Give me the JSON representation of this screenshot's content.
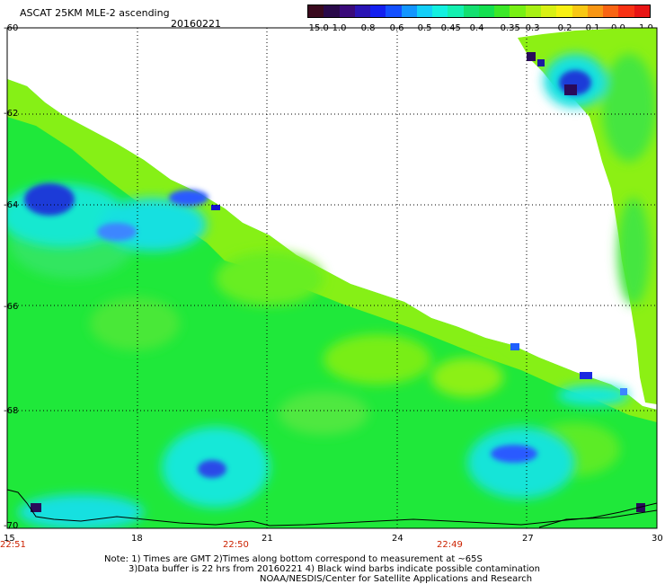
{
  "header": {
    "title": "ASCAT 25KM MLE-2 ascending",
    "date": "20160221"
  },
  "colorbar": {
    "labels": [
      "-15.0",
      "-1.0",
      "-0.8",
      "-0.6",
      "-0.5",
      "-0.45",
      "-0.4",
      "-0.35",
      "-0.3",
      "-0.2",
      "-0.1",
      "0.0",
      "1.0"
    ],
    "colors": [
      "#3a0a1e",
      "#2a0a4a",
      "#3a0a7a",
      "#2a14b4",
      "#1420f0",
      "#1450ff",
      "#1496ff",
      "#14cff8",
      "#14f0e0",
      "#14f0b0",
      "#14e070",
      "#14e050",
      "#3ce828",
      "#78f014",
      "#a8f014",
      "#d8f014",
      "#f8f014",
      "#f8c814",
      "#f89614",
      "#f86414",
      "#f83214",
      "#e81414"
    ]
  },
  "map": {
    "lat_labels": [
      "-60",
      "-62",
      "-64",
      "-66",
      "-68",
      "-70"
    ],
    "lon_labels": [
      "15",
      "18",
      "21",
      "24",
      "27",
      "30"
    ],
    "time_labels": [
      "22:51",
      "22:50",
      "22:49"
    ]
  },
  "footer": {
    "note_line1": "Note: 1) Times are GMT 2)Times along bottom correspond to measurement at ~65S",
    "note_line2": "3)Data buffer is 22 hrs from 20160221 4) Black wind barbs indicate possible contamination",
    "note_line3": "NOAA/NESDIS/Center for Satellite Applications and Research"
  }
}
